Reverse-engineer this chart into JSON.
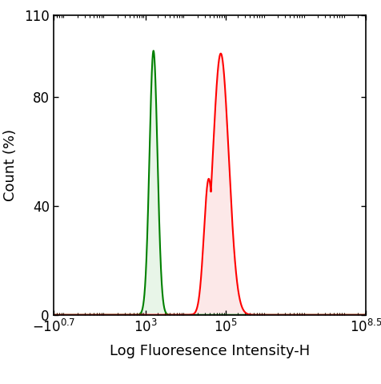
{
  "title": "",
  "xlabel": "Log Fluoresence Intensity-H",
  "ylabel": "Count (%)",
  "ylim": [
    0,
    110
  ],
  "yticks": [
    0,
    40,
    80,
    110
  ],
  "xlog_min": 0.7,
  "xlog_max": 8.5,
  "green_peak_log": 3.2,
  "green_sigma_log": 0.1,
  "green_amplitude": 97,
  "red_peak_log": 4.88,
  "red_sigma_log": 0.2,
  "red_amplitude": 96,
  "red_shoulder_log": 4.58,
  "red_shoulder_amp": 50,
  "red_shoulder_sigma": 0.12,
  "green_color": "#008000",
  "red_color": "#ff0000",
  "background_color": "#ffffff",
  "figsize": [
    4.76,
    4.79
  ],
  "dpi": 100
}
